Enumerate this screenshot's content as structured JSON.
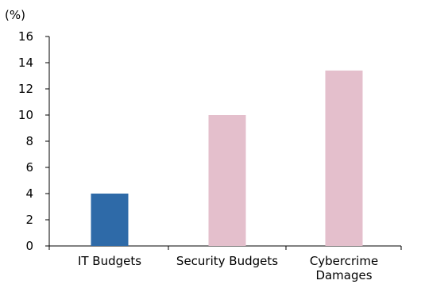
{
  "chart_data": {
    "type": "bar",
    "ylabel": "(%)",
    "categories": [
      "IT Budgets",
      "Security Budgets",
      "Cybercrime Damages"
    ],
    "category_lines": [
      [
        "IT Budgets"
      ],
      [
        "Security Budgets"
      ],
      [
        "Cybercrime",
        "Damages"
      ]
    ],
    "values": [
      4,
      10,
      13.4
    ],
    "bar_colors": [
      "#2e6aa8",
      "#e4bfcc",
      "#e4bfcc"
    ],
    "ylim": [
      0,
      16
    ],
    "yticks": [
      0,
      2,
      4,
      6,
      8,
      10,
      12,
      14,
      16
    ],
    "grid": false,
    "legend": "none"
  }
}
